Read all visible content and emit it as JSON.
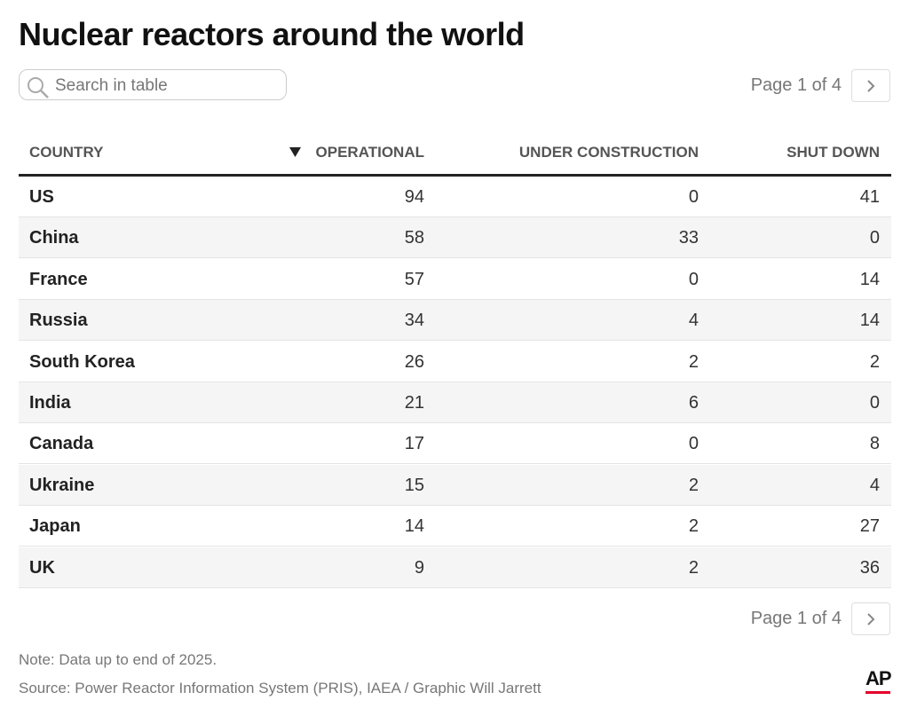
{
  "header": {
    "title": "Nuclear reactors around the world"
  },
  "search": {
    "placeholder": "Search in table"
  },
  "pagination": {
    "label": "Page 1 of 4"
  },
  "table": {
    "columns": [
      "COUNTRY",
      "OPERATIONAL",
      "UNDER CONSTRUCTION",
      "SHUT DOWN"
    ],
    "rows": [
      [
        "US",
        94,
        0,
        41
      ],
      [
        "China",
        58,
        33,
        0
      ],
      [
        "France",
        57,
        0,
        14
      ],
      [
        "Russia",
        34,
        4,
        14
      ],
      [
        "South Korea",
        26,
        2,
        2
      ],
      [
        "India",
        21,
        6,
        0
      ],
      [
        "Canada",
        17,
        0,
        8
      ],
      [
        "Ukraine",
        15,
        2,
        4
      ],
      [
        "Japan",
        14,
        2,
        27
      ],
      [
        "UK",
        9,
        2,
        36
      ]
    ]
  },
  "footer": {
    "note": "Note: Data up to end of 2025.",
    "source": "Source: Power Reactor Information System (PRIS), IAEA / Graphic Will Jarrett",
    "logo": "AP"
  }
}
